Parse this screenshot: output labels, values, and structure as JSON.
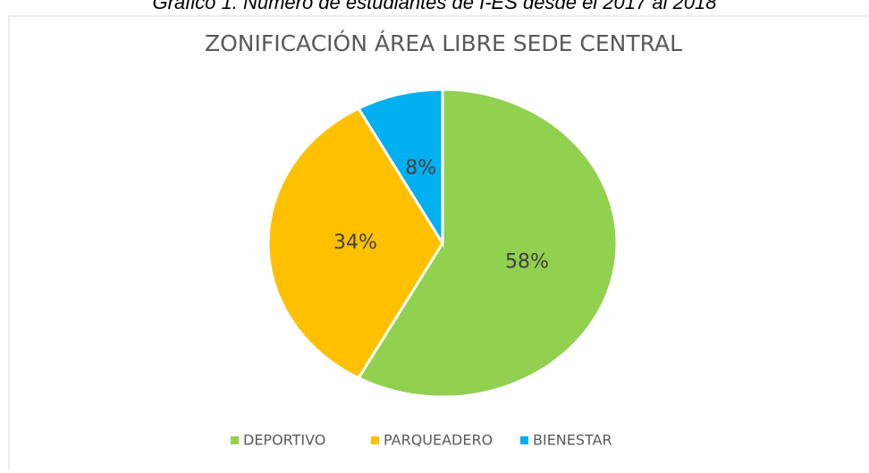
{
  "caption": "Gráfico 1. Número de estudiantes de I-ES desde el 2017 al 2018",
  "chart_data": {
    "type": "pie",
    "title": "ZONIFICACIÓN ÁREA LIBRE SEDE CENTRAL",
    "categories": [
      "DEPORTIVO",
      "PARQUEADERO",
      "BIENESTAR"
    ],
    "values": [
      58,
      34,
      8
    ],
    "value_labels": [
      "58%",
      "34%",
      "8%"
    ],
    "colors": [
      "#92d050",
      "#ffc000",
      "#00b0f0"
    ],
    "legend": "bottom"
  }
}
